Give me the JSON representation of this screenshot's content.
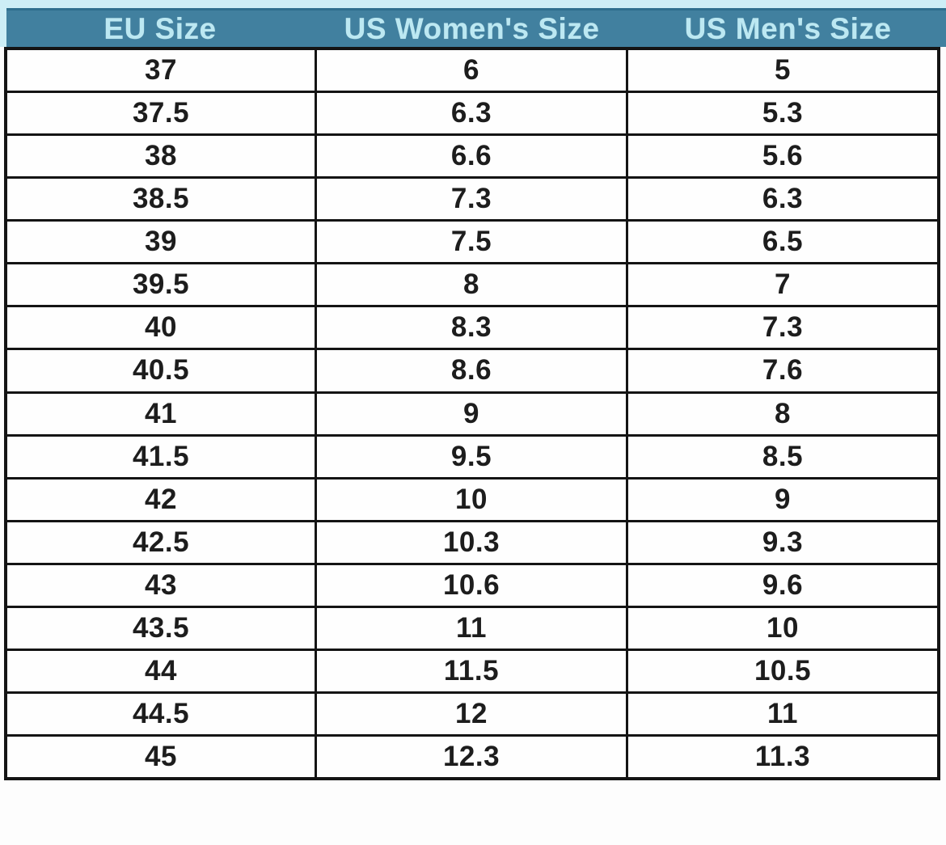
{
  "chart_data": {
    "type": "table",
    "columns": [
      "EU Size",
      "US Women's Size",
      "US Men's Size"
    ],
    "rows": [
      [
        "37",
        "6",
        "5"
      ],
      [
        "37.5",
        "6.3",
        "5.3"
      ],
      [
        "38",
        "6.6",
        "5.6"
      ],
      [
        "38.5",
        "7.3",
        "6.3"
      ],
      [
        "39",
        "7.5",
        "6.5"
      ],
      [
        "39.5",
        "8",
        "7"
      ],
      [
        "40",
        "8.3",
        "7.3"
      ],
      [
        "40.5",
        "8.6",
        "7.6"
      ],
      [
        "41",
        "9",
        "8"
      ],
      [
        "41.5",
        "9.5",
        "8.5"
      ],
      [
        "42",
        "10",
        "9"
      ],
      [
        "42.5",
        "10.3",
        "9.3"
      ],
      [
        "43",
        "10.6",
        "9.6"
      ],
      [
        "43.5",
        "11",
        "10"
      ],
      [
        "44",
        "11.5",
        "10.5"
      ],
      [
        "44.5",
        "12",
        "11"
      ],
      [
        "45",
        "12.3",
        "11.3"
      ]
    ],
    "layout": {
      "header_position": "top",
      "grid": true,
      "column_alignment": "center"
    }
  },
  "colors": {
    "header_bg": "#41809f",
    "header_bg_edge": "#2f6f8e",
    "header_text": "#bce8f2",
    "accent_strip": "#cdeef6",
    "border": "#141414",
    "cell_text": "#1d1d1d",
    "page_bg": "#fdfdfd"
  }
}
